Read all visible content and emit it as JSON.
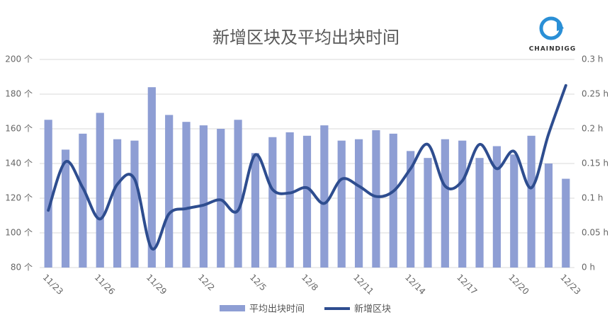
{
  "chart_data": {
    "type": "combo",
    "title": "新增区块及平均出块时间",
    "logo": "CHAINDIGG",
    "categories": [
      "11/23",
      null,
      null,
      "11/26",
      null,
      null,
      "11/29",
      null,
      null,
      "12/2",
      null,
      null,
      "12/5",
      null,
      null,
      "12/8",
      null,
      null,
      "12/11",
      null,
      null,
      "12/14",
      null,
      null,
      "12/17",
      null,
      null,
      "12/20",
      null,
      null,
      "12/23"
    ],
    "series": [
      {
        "name": "平均出块时间",
        "type": "bar",
        "axis": "y2",
        "color": "#8e9ed4",
        "values": [
          0.213,
          0.17,
          0.193,
          0.223,
          0.185,
          0.183,
          0.26,
          0.22,
          0.21,
          0.205,
          0.2,
          0.213,
          0.165,
          0.188,
          0.195,
          0.19,
          0.205,
          0.183,
          0.185,
          0.198,
          0.193,
          0.168,
          0.158,
          0.185,
          0.183,
          0.158,
          0.175,
          0.163,
          0.19,
          0.15,
          0.128
        ]
      },
      {
        "name": "新增区块",
        "type": "line",
        "axis": "y",
        "color": "#2e4d8f",
        "values": [
          113,
          141,
          126,
          108,
          128,
          131,
          91,
          111,
          114,
          116,
          119,
          113,
          145,
          125,
          123,
          126,
          117,
          131,
          127,
          121,
          124,
          137,
          151,
          127,
          130,
          151,
          137,
          147,
          126,
          157,
          185
        ]
      }
    ],
    "ylim": [
      80,
      200
    ],
    "yticks": [
      {
        "value": 80,
        "label": "80 个"
      },
      {
        "value": 100,
        "label": "100 个"
      },
      {
        "value": 120,
        "label": "120 个"
      },
      {
        "value": 140,
        "label": "140 个"
      },
      {
        "value": 160,
        "label": "160 个"
      },
      {
        "value": 180,
        "label": "180 个"
      },
      {
        "value": 200,
        "label": "200 个"
      }
    ],
    "y2lim": [
      0,
      0.3
    ],
    "y2ticks": [
      {
        "value": 0,
        "label": "0 h"
      },
      {
        "value": 0.05,
        "label": "0.05 h"
      },
      {
        "value": 0.1,
        "label": "0.1 h"
      },
      {
        "value": 0.15,
        "label": "0.15 h"
      },
      {
        "value": 0.2,
        "label": "0.2 h"
      },
      {
        "value": 0.25,
        "label": "0.25 h"
      },
      {
        "value": 0.3,
        "label": "0.3 h"
      }
    ],
    "grid": true
  }
}
